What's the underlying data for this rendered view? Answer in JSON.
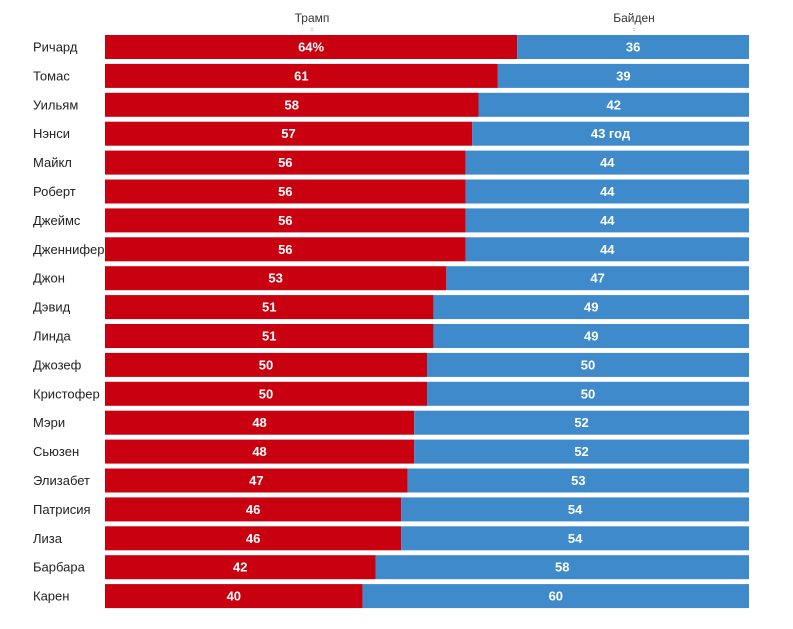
{
  "chart_data": {
    "type": "bar",
    "stacked": true,
    "orientation": "horizontal",
    "column_labels": {
      "trump": "Трамп",
      "biden": "Байден"
    },
    "colors": {
      "trump": "#c8000f",
      "biden": "#3e8acb"
    },
    "categories": [
      "Ричард",
      "Томас",
      "Уильям",
      "Нэнси",
      "Майкл",
      "Роберт",
      "Джеймс",
      "Дженнифер",
      "Джон",
      "Дэвид",
      "Линда",
      "Джозеф",
      "Кристофер",
      "Мэри",
      "Сьюзен",
      "Элизабет",
      "Патрисия",
      "Лиза",
      "Барбара",
      "Карен"
    ],
    "series": [
      {
        "name": "Трамп",
        "values": [
          64,
          61,
          58,
          57,
          56,
          56,
          56,
          56,
          53,
          51,
          51,
          50,
          50,
          48,
          48,
          47,
          46,
          46,
          42,
          40
        ]
      },
      {
        "name": "Байден",
        "values": [
          36,
          39,
          42,
          43,
          44,
          44,
          44,
          44,
          47,
          49,
          49,
          50,
          50,
          52,
          52,
          53,
          54,
          54,
          58,
          60
        ]
      }
    ],
    "data_labels": {
      "trump": [
        "64%",
        "61",
        "58",
        "57",
        "56",
        "56",
        "56",
        "56",
        "53",
        "51",
        "51",
        "50",
        "50",
        "48",
        "48",
        "47",
        "46",
        "46",
        "42",
        "40"
      ],
      "biden": [
        "36",
        "39",
        "42",
        "43 год",
        "44",
        "44",
        "44",
        "44",
        "47",
        "49",
        "49",
        "50",
        "50",
        "52",
        "52",
        "53",
        "54",
        "54",
        "58",
        "60"
      ]
    }
  }
}
